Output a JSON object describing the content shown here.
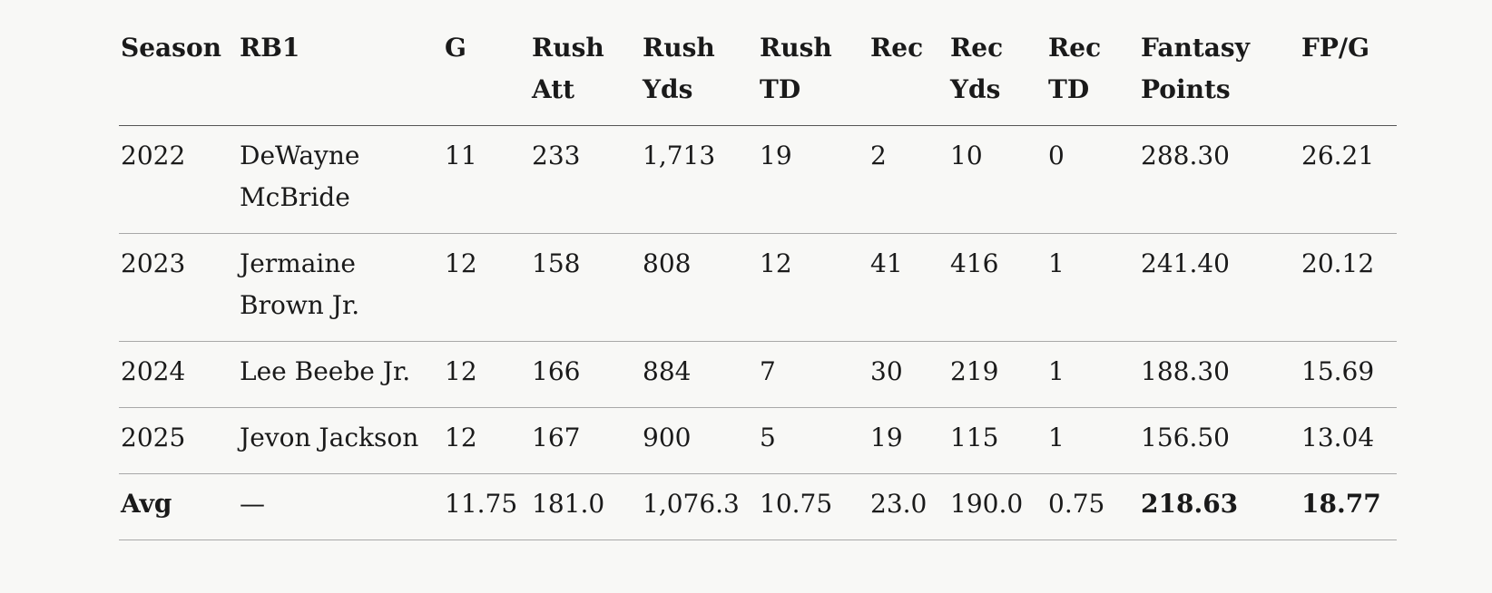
{
  "headers": [
    "Season",
    "RB1",
    "G",
    "Rush Att",
    "Rush Yds",
    "Rush TD",
    "Rec",
    "Rec Yds",
    "Rec TD",
    "Fantasy Points",
    "FP/G"
  ],
  "rows": [
    [
      "2022",
      "DeWayne McBride",
      "11",
      "233",
      "1,713",
      "19",
      "2",
      "10",
      "0",
      "288.30",
      "26.21"
    ],
    [
      "2023",
      "Jermaine Brown Jr.",
      "12",
      "158",
      "808",
      "12",
      "41",
      "416",
      "1",
      "241.40",
      "20.12"
    ],
    [
      "2024",
      "Lee Beebe Jr.",
      "12",
      "166",
      "884",
      "7",
      "30",
      "219",
      "1",
      "188.30",
      "15.69"
    ],
    [
      "2025",
      "Jevon Jackson",
      "12",
      "167",
      "900",
      "5",
      "19",
      "115",
      "1",
      "156.50",
      "13.04"
    ]
  ],
  "avg_row": [
    "Avg",
    "—",
    "11.75",
    "181.0",
    "1,076.3",
    "10.75",
    "23.0",
    "190.0",
    "0.75",
    "218.63",
    "18.77"
  ]
}
